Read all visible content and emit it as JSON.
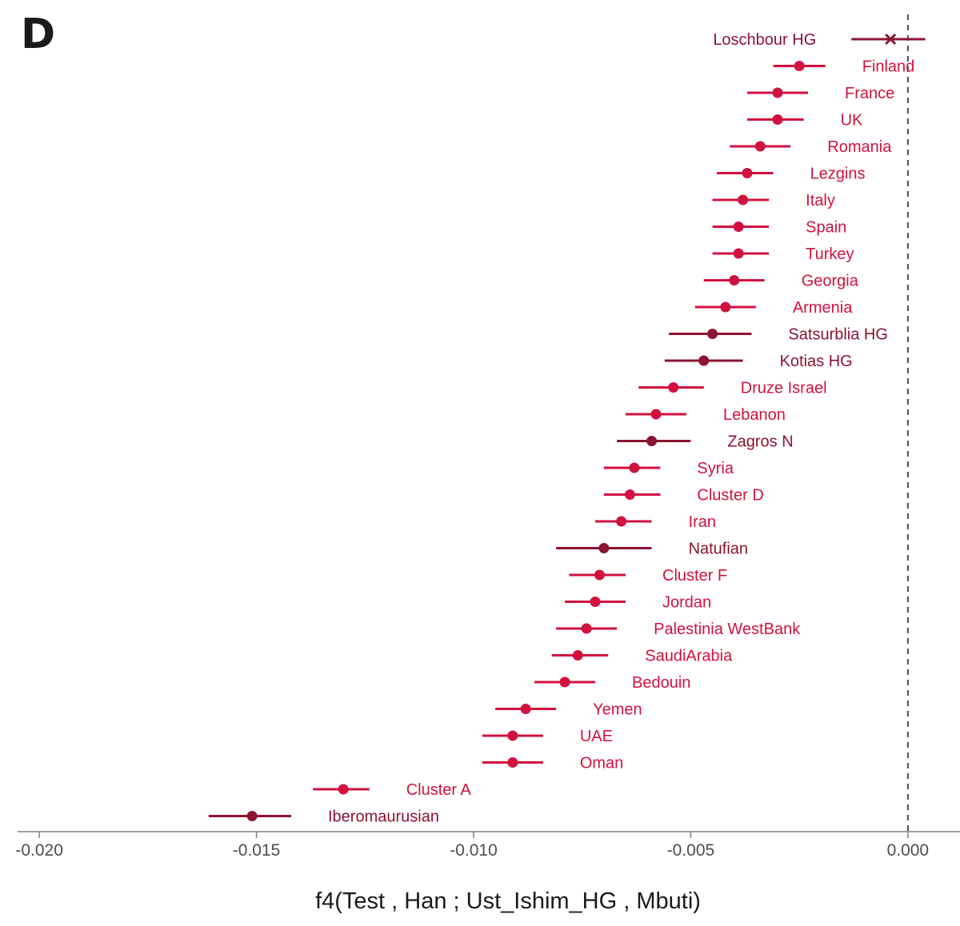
{
  "panel_label": "D",
  "chart_data": {
    "type": "scatter",
    "subtype": "dot-and-whisker",
    "xlabel": "f4(Test , Han ; Ust_Ishim_HG , Mbuti)",
    "ylabel": "",
    "xlim": [
      -0.0205,
      0.0012
    ],
    "x_ticks": [
      -0.02,
      -0.015,
      -0.01,
      -0.005,
      0.0
    ],
    "x_tick_labels": [
      "-0.020",
      "-0.015",
      "-0.010",
      "-0.005",
      "0.000"
    ],
    "reference_line": {
      "x": 0.0,
      "style": "dashed"
    },
    "grid": false,
    "colors": {
      "modern": "#d1123f",
      "ancient": "#8b1433",
      "axis": "#808080",
      "text": "#1a1a1a"
    },
    "points": [
      {
        "label": "Loschbour HG",
        "x": -0.0004,
        "lo": -0.0013,
        "hi": 0.0004,
        "group": "ancient",
        "marker": "x"
      },
      {
        "label": "Finland",
        "x": -0.0025,
        "lo": -0.0031,
        "hi": -0.0019,
        "group": "modern"
      },
      {
        "label": "France",
        "x": -0.003,
        "lo": -0.0037,
        "hi": -0.0023,
        "group": "modern"
      },
      {
        "label": "UK",
        "x": -0.003,
        "lo": -0.0037,
        "hi": -0.0024,
        "group": "modern"
      },
      {
        "label": "Romania",
        "x": -0.0034,
        "lo": -0.0041,
        "hi": -0.0027,
        "group": "modern"
      },
      {
        "label": "Lezgins",
        "x": -0.0037,
        "lo": -0.0044,
        "hi": -0.0031,
        "group": "modern"
      },
      {
        "label": "Italy",
        "x": -0.0038,
        "lo": -0.0045,
        "hi": -0.0032,
        "group": "modern"
      },
      {
        "label": "Spain",
        "x": -0.0039,
        "lo": -0.0045,
        "hi": -0.0032,
        "group": "modern"
      },
      {
        "label": "Turkey",
        "x": -0.0039,
        "lo": -0.0045,
        "hi": -0.0032,
        "group": "modern"
      },
      {
        "label": "Georgia",
        "x": -0.004,
        "lo": -0.0047,
        "hi": -0.0033,
        "group": "modern"
      },
      {
        "label": "Armenia",
        "x": -0.0042,
        "lo": -0.0049,
        "hi": -0.0035,
        "group": "modern"
      },
      {
        "label": "Satsurblia HG",
        "x": -0.0045,
        "lo": -0.0055,
        "hi": -0.0036,
        "group": "ancient"
      },
      {
        "label": "Kotias HG",
        "x": -0.0047,
        "lo": -0.0056,
        "hi": -0.0038,
        "group": "ancient"
      },
      {
        "label": "Druze Israel",
        "x": -0.0054,
        "lo": -0.0062,
        "hi": -0.0047,
        "group": "modern"
      },
      {
        "label": "Lebanon",
        "x": -0.0058,
        "lo": -0.0065,
        "hi": -0.0051,
        "group": "modern"
      },
      {
        "label": "Zagros N",
        "x": -0.0059,
        "lo": -0.0067,
        "hi": -0.005,
        "group": "ancient"
      },
      {
        "label": "Syria",
        "x": -0.0063,
        "lo": -0.007,
        "hi": -0.0057,
        "group": "modern"
      },
      {
        "label": "Cluster D",
        "x": -0.0064,
        "lo": -0.007,
        "hi": -0.0057,
        "group": "modern"
      },
      {
        "label": "Iran",
        "x": -0.0066,
        "lo": -0.0072,
        "hi": -0.0059,
        "group": "modern"
      },
      {
        "label": "Natufian",
        "x": -0.007,
        "lo": -0.0081,
        "hi": -0.0059,
        "group": "ancient"
      },
      {
        "label": "Cluster F",
        "x": -0.0071,
        "lo": -0.0078,
        "hi": -0.0065,
        "group": "modern"
      },
      {
        "label": "Jordan",
        "x": -0.0072,
        "lo": -0.0079,
        "hi": -0.0065,
        "group": "modern"
      },
      {
        "label": "Palestinia WestBank",
        "x": -0.0074,
        "lo": -0.0081,
        "hi": -0.0067,
        "group": "modern"
      },
      {
        "label": "SaudiArabia",
        "x": -0.0076,
        "lo": -0.0082,
        "hi": -0.0069,
        "group": "modern"
      },
      {
        "label": "Bedouin",
        "x": -0.0079,
        "lo": -0.0086,
        "hi": -0.0072,
        "group": "modern"
      },
      {
        "label": "Yemen",
        "x": -0.0088,
        "lo": -0.0095,
        "hi": -0.0081,
        "group": "modern"
      },
      {
        "label": "UAE",
        "x": -0.0091,
        "lo": -0.0098,
        "hi": -0.0084,
        "group": "modern"
      },
      {
        "label": "Oman",
        "x": -0.0091,
        "lo": -0.0098,
        "hi": -0.0084,
        "group": "modern"
      },
      {
        "label": "Cluster A",
        "x": -0.013,
        "lo": -0.0137,
        "hi": -0.0124,
        "group": "modern"
      },
      {
        "label": "Iberomaurusian",
        "x": -0.0151,
        "lo": -0.0161,
        "hi": -0.0142,
        "group": "ancient"
      }
    ]
  }
}
